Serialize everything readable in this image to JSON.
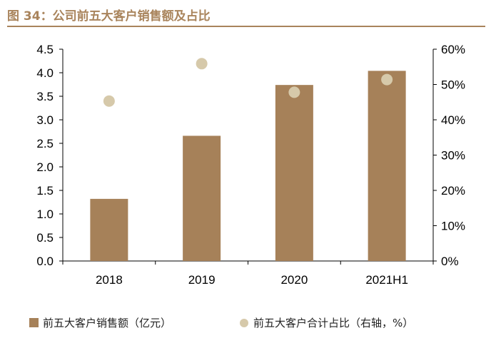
{
  "title": "图 34：公司前五大客户销售额及占比",
  "colors": {
    "accent": "#a9845c",
    "bar": "#a68159",
    "dot": "#d6c9aa",
    "axis": "#000000"
  },
  "chart_data": {
    "type": "bar",
    "title": "图 34：公司前五大客户销售额及占比",
    "categories": [
      "2018",
      "2019",
      "2020",
      "2021H1"
    ],
    "series": [
      {
        "name": "前五大客户销售额（亿元）",
        "type": "bar",
        "axis": "left",
        "values": [
          1.32,
          2.66,
          3.74,
          4.04
        ]
      },
      {
        "name": "前五大客户合计占比（右轴，%）",
        "type": "scatter",
        "axis": "right",
        "values": [
          45.3,
          55.9,
          47.8,
          51.4
        ]
      }
    ],
    "y_left": {
      "ylim": [
        0,
        4.5
      ],
      "ticks": [
        "0.0",
        "0.5",
        "1.0",
        "1.5",
        "2.0",
        "2.5",
        "3.0",
        "3.5",
        "4.0",
        "4.5"
      ]
    },
    "y_right": {
      "ylim": [
        0,
        60
      ],
      "ticks": [
        "0%",
        "10%",
        "20%",
        "30%",
        "40%",
        "50%",
        "60%"
      ]
    },
    "grid": false,
    "legend_position": "bottom"
  }
}
